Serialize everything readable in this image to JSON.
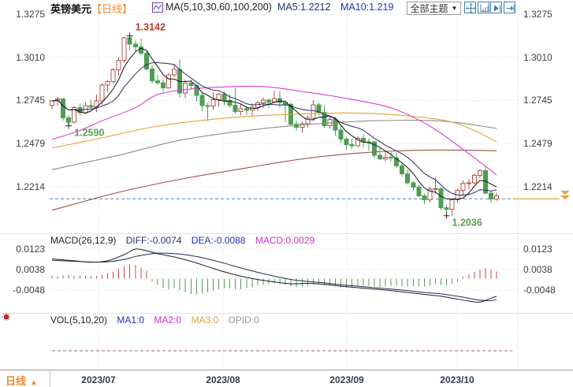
{
  "header": {
    "title": "英镑美元",
    "period_tag": "【日线】",
    "ma_params": "MA(5,10,30,60,100,200)",
    "ma5_label": "MA5:1.2212",
    "ma10_label": "MA10:1.219",
    "theme_label": "全部主题",
    "dropdown_arrow": "▼"
  },
  "macd_header": {
    "title": "MACD(26,12,9)",
    "diff": "DIFF:-0.0074",
    "dea": "DEA:-0.0088",
    "macd": "MACD:0.0029"
  },
  "vol_header": {
    "title": "VOL(5,10,20)",
    "ma1": "MA1:0",
    "ma2": "MA2:0",
    "ma3": "MA3:0",
    "opid": "OPID:0"
  },
  "bottom": {
    "tab_label": "日线",
    "tab_arrow": "▲",
    "dates": [
      "2023/07",
      "2023/08",
      "2023/09",
      "2023/10"
    ]
  },
  "colors": {
    "up": "#b0544e",
    "down": "#4f9d55",
    "ma5": "#111111",
    "ma10": "#2a2a66",
    "ma30": "#d840cc",
    "ma60": "#e2a23c",
    "ma100": "#8b8b8b",
    "ma200": "#9e524a",
    "diff_line": "#1a1a2e",
    "dea_line": "#20304a",
    "hist_pos": "#c05248",
    "hist_neg": "#4f9d55",
    "current_line": "#4e86b0",
    "current_line_right": "#e2a23c",
    "grid": "#ebebeb",
    "separator": "#e3e3e3",
    "axis_line": "#999999",
    "annotation_high": "#b43a2e",
    "annotation_low": "#5c9e51",
    "marker_cross": "#222222",
    "vol_line": "#9a6b66",
    "toolbar_blue": "#3c7fae",
    "tab_orange": "#ef8b32"
  },
  "axis": {
    "main_price_labels": [
      "1.3275",
      "1.3010",
      "1.2745",
      "1.2479",
      "1.2214"
    ],
    "macd_value_labels": [
      "0.0123",
      "0.0038",
      "-0.0048"
    ]
  },
  "chart_data": {
    "type": "candlestick",
    "title": "英镑美元 日线 (GBP/USD Daily)",
    "main": {
      "price_gridlines": [
        1.3275,
        1.301,
        1.2745,
        1.2479,
        1.2214
      ],
      "current_price": 1.214,
      "candles": [
        [
          1.2715,
          1.2748,
          1.269,
          1.2741
        ],
        [
          1.2741,
          1.2768,
          1.2712,
          1.2755
        ],
        [
          1.2755,
          1.2762,
          1.262,
          1.2637
        ],
        [
          1.2637,
          1.2652,
          1.259,
          1.2612
        ],
        [
          1.2612,
          1.2712,
          1.2603,
          1.27
        ],
        [
          1.27,
          1.2726,
          1.2652,
          1.267
        ],
        [
          1.267,
          1.2735,
          1.2662,
          1.2713
        ],
        [
          1.2713,
          1.2749,
          1.2688,
          1.2703
        ],
        [
          1.2703,
          1.2782,
          1.2674,
          1.2742
        ],
        [
          1.2742,
          1.2852,
          1.272,
          1.2838
        ],
        [
          1.2838,
          1.2872,
          1.2798,
          1.286
        ],
        [
          1.286,
          1.2942,
          1.2848,
          1.2934
        ],
        [
          1.2934,
          1.3012,
          1.2898,
          1.2992
        ],
        [
          1.2992,
          1.3138,
          1.2978,
          1.313
        ],
        [
          1.313,
          1.3142,
          1.3058,
          1.3092
        ],
        [
          1.3092,
          1.3112,
          1.3048,
          1.3075
        ],
        [
          1.3075,
          1.3126,
          1.3022,
          1.3036
        ],
        [
          1.3036,
          1.3048,
          1.2928,
          1.2938
        ],
        [
          1.2938,
          1.2962,
          1.2848,
          1.2866
        ],
        [
          1.2866,
          1.2902,
          1.2838,
          1.2854
        ],
        [
          1.2854,
          1.2872,
          1.2798,
          1.2823
        ],
        [
          1.2823,
          1.2912,
          1.2818,
          1.2903
        ],
        [
          1.2903,
          1.2962,
          1.2888,
          1.2936
        ],
        [
          1.2936,
          1.2996,
          1.2762,
          1.279
        ],
        [
          1.279,
          1.2872,
          1.2758,
          1.2851
        ],
        [
          1.2851,
          1.2874,
          1.2812,
          1.2836
        ],
        [
          1.2836,
          1.2842,
          1.2738,
          1.2776
        ],
        [
          1.2776,
          1.2792,
          1.2678,
          1.2712
        ],
        [
          1.2712,
          1.273,
          1.2618,
          1.2711
        ],
        [
          1.2711,
          1.2796,
          1.2688,
          1.2749
        ],
        [
          1.2749,
          1.279,
          1.2708,
          1.2784
        ],
        [
          1.2784,
          1.2802,
          1.2715,
          1.2745
        ],
        [
          1.2745,
          1.2782,
          1.2698,
          1.2716
        ],
        [
          1.2716,
          1.282,
          1.2664,
          1.2676
        ],
        [
          1.2676,
          1.2722,
          1.2652,
          1.2694
        ],
        [
          1.2694,
          1.2707,
          1.2657,
          1.2684
        ],
        [
          1.2684,
          1.2727,
          1.2648,
          1.2703
        ],
        [
          1.2703,
          1.2742,
          1.2678,
          1.2731
        ],
        [
          1.2731,
          1.2762,
          1.2698,
          1.2748
        ],
        [
          1.2748,
          1.2757,
          1.2698,
          1.2735
        ],
        [
          1.2735,
          1.2802,
          1.2728,
          1.2756
        ],
        [
          1.2756,
          1.2802,
          1.2702,
          1.2733
        ],
        [
          1.2733,
          1.2748,
          1.2612,
          1.272
        ],
        [
          1.272,
          1.2732,
          1.2592,
          1.2598
        ],
        [
          1.2598,
          1.2622,
          1.2558,
          1.2579
        ],
        [
          1.2579,
          1.2617,
          1.2548,
          1.2601
        ],
        [
          1.2601,
          1.2652,
          1.2578,
          1.2636
        ],
        [
          1.2636,
          1.2748,
          1.2618,
          1.2718
        ],
        [
          1.2718,
          1.2732,
          1.2652,
          1.2672
        ],
        [
          1.2672,
          1.2712,
          1.2576,
          1.259
        ],
        [
          1.259,
          1.2648,
          1.2572,
          1.2628
        ],
        [
          1.2628,
          1.2642,
          1.2526,
          1.2564
        ],
        [
          1.2564,
          1.2592,
          1.2482,
          1.2506
        ],
        [
          1.2506,
          1.2522,
          1.2442,
          1.2473
        ],
        [
          1.2473,
          1.251,
          1.2446,
          1.2465
        ],
        [
          1.2465,
          1.2527,
          1.2458,
          1.2511
        ],
        [
          1.2511,
          1.2537,
          1.2458,
          1.249
        ],
        [
          1.249,
          1.2512,
          1.2438,
          1.2489
        ],
        [
          1.2489,
          1.2497,
          1.2392,
          1.2409
        ],
        [
          1.2409,
          1.2452,
          1.2378,
          1.2385
        ],
        [
          1.2385,
          1.2424,
          1.2368,
          1.2395
        ],
        [
          1.2395,
          1.2427,
          1.237,
          1.2391
        ],
        [
          1.2391,
          1.2424,
          1.233,
          1.2343
        ],
        [
          1.2343,
          1.2357,
          1.2278,
          1.2294
        ],
        [
          1.2294,
          1.2317,
          1.2228,
          1.2238
        ],
        [
          1.2238,
          1.225,
          1.2192,
          1.2211
        ],
        [
          1.2211,
          1.2227,
          1.2148,
          1.2158
        ],
        [
          1.2158,
          1.2172,
          1.2108,
          1.2135
        ],
        [
          1.2135,
          1.2217,
          1.2116,
          1.2199
        ],
        [
          1.2199,
          1.2272,
          1.2172,
          1.2203
        ],
        [
          1.2203,
          1.2212,
          1.2072,
          1.2085
        ],
        [
          1.2085,
          1.2102,
          1.2036,
          1.2076
        ],
        [
          1.2076,
          1.2142,
          1.2038,
          1.2134
        ],
        [
          1.2134,
          1.2202,
          1.2118,
          1.2193
        ],
        [
          1.2193,
          1.2252,
          1.2158,
          1.2236
        ],
        [
          1.2236,
          1.2262,
          1.2198,
          1.2239
        ],
        [
          1.2239,
          1.2297,
          1.2228,
          1.2285
        ],
        [
          1.2285,
          1.2322,
          1.2268,
          1.2313
        ],
        [
          1.2313,
          1.2337,
          1.2168,
          1.2175
        ],
        [
          1.2175,
          1.2192,
          1.2118,
          1.214
        ],
        [
          1.214,
          1.2177,
          1.2128,
          1.2158
        ]
      ],
      "ma_overlays": [
        {
          "name": "MA30",
          "color_key": "ma30",
          "points": [
            [
              0,
              1.2505
            ],
            [
              5,
              1.256
            ],
            [
              9,
              1.262
            ],
            [
              15,
              1.27
            ],
            [
              19,
              1.2781
            ],
            [
              25,
              1.2815
            ],
            [
              31,
              1.2828
            ],
            [
              38,
              1.283
            ],
            [
              46,
              1.2795
            ],
            [
              53,
              1.2757
            ],
            [
              61,
              1.2699
            ],
            [
              68,
              1.2587
            ],
            [
              75,
              1.2418
            ],
            [
              80,
              1.2287
            ]
          ]
        },
        {
          "name": "MA60",
          "color_key": "ma60",
          "points": [
            [
              0,
              1.2452
            ],
            [
              9,
              1.2515
            ],
            [
              19,
              1.2587
            ],
            [
              31,
              1.2636
            ],
            [
              42,
              1.2658
            ],
            [
              53,
              1.2668
            ],
            [
              62,
              1.2655
            ],
            [
              71,
              1.262
            ],
            [
              76,
              1.256
            ],
            [
              80,
              1.249
            ]
          ]
        },
        {
          "name": "MA100",
          "color_key": "ma100",
          "points": [
            [
              0,
              1.232
            ],
            [
              12,
              1.2408
            ],
            [
              23,
              1.25
            ],
            [
              35,
              1.256
            ],
            [
              46,
              1.2597
            ],
            [
              58,
              1.262
            ],
            [
              70,
              1.2618
            ],
            [
              80,
              1.2573
            ]
          ]
        },
        {
          "name": "MA200",
          "color_key": "ma200",
          "points": [
            [
              0,
              1.207
            ],
            [
              12,
              1.218
            ],
            [
              23,
              1.226
            ],
            [
              35,
              1.233
            ],
            [
              46,
              1.239
            ],
            [
              58,
              1.2428
            ],
            [
              69,
              1.244
            ],
            [
              80,
              1.2436
            ]
          ]
        }
      ],
      "annotations": [
        {
          "index": 14,
          "price": 1.3142,
          "label": "1.3142",
          "type": "high"
        },
        {
          "index": 3,
          "price": 1.259,
          "label": "1.2590",
          "type": "low"
        },
        {
          "index": 71,
          "price": 1.2036,
          "label": "1.2036",
          "type": "low"
        }
      ]
    },
    "macd": {
      "gridlines": [
        0.0123,
        0.0038,
        -0.0048
      ],
      "histogram": [
        0.0012,
        0.001,
        0.0013,
        0.0015,
        0.0012,
        0.0013,
        0.0011,
        0.001,
        0.0012,
        0.0016,
        0.0022,
        0.003,
        0.004,
        0.0052,
        0.006,
        0.0057,
        0.0046,
        0.0032,
        -0.0012,
        -0.0026,
        -0.0038,
        -0.0044,
        -0.004,
        -0.0048,
        -0.0058,
        -0.0064,
        -0.0066,
        -0.0062,
        -0.0058,
        -0.0052,
        -0.0044,
        -0.004,
        -0.0042,
        -0.0046,
        -0.0044,
        -0.004,
        -0.0036,
        -0.003,
        -0.0026,
        -0.0024,
        -0.002,
        -0.0022,
        -0.0026,
        -0.0032,
        -0.0036,
        -0.0034,
        -0.003,
        -0.0024,
        -0.0024,
        -0.0028,
        -0.003,
        -0.0032,
        -0.0036,
        -0.0038,
        -0.0036,
        -0.0032,
        -0.003,
        -0.003,
        -0.0034,
        -0.0036,
        -0.0034,
        -0.003,
        -0.003,
        -0.0032,
        -0.0034,
        -0.0032,
        -0.0032,
        -0.0034,
        -0.003,
        -0.0024,
        -0.0026,
        -0.0028,
        -0.0022,
        -0.0014,
        0.0008,
        0.0018,
        0.0028,
        0.0038,
        0.0044,
        0.0038,
        0.0029
      ],
      "diff_points": [
        [
          0,
          0.0082
        ],
        [
          4,
          0.0074
        ],
        [
          7,
          0.0068
        ],
        [
          10,
          0.0074
        ],
        [
          13,
          0.01
        ],
        [
          15,
          0.0123
        ],
        [
          17,
          0.0116
        ],
        [
          19,
          0.0104
        ],
        [
          22,
          0.009
        ],
        [
          25,
          0.0072
        ],
        [
          28,
          0.005
        ],
        [
          31,
          0.0028
        ],
        [
          34,
          0.001
        ],
        [
          37,
          -0.0004
        ],
        [
          40,
          -0.0014
        ],
        [
          43,
          -0.0022
        ],
        [
          46,
          -0.002
        ],
        [
          49,
          -0.0024
        ],
        [
          52,
          -0.0032
        ],
        [
          55,
          -0.0038
        ],
        [
          58,
          -0.0044
        ],
        [
          61,
          -0.005
        ],
        [
          64,
          -0.0058
        ],
        [
          67,
          -0.0066
        ],
        [
          70,
          -0.0074
        ],
        [
          73,
          -0.0086
        ],
        [
          75,
          -0.0094
        ],
        [
          77,
          -0.0098
        ],
        [
          79,
          -0.0082
        ],
        [
          80,
          -0.0074
        ]
      ],
      "dea_points": [
        [
          0,
          0.0076
        ],
        [
          4,
          0.0072
        ],
        [
          7,
          0.0069
        ],
        [
          10,
          0.007
        ],
        [
          13,
          0.008
        ],
        [
          15,
          0.0092
        ],
        [
          17,
          0.01
        ],
        [
          19,
          0.0106
        ],
        [
          22,
          0.0104
        ],
        [
          25,
          0.0096
        ],
        [
          28,
          0.0082
        ],
        [
          31,
          0.0064
        ],
        [
          34,
          0.0044
        ],
        [
          37,
          0.0026
        ],
        [
          40,
          0.001
        ],
        [
          43,
          -0.0004
        ],
        [
          46,
          -0.0012
        ],
        [
          49,
          -0.0018
        ],
        [
          52,
          -0.0026
        ],
        [
          55,
          -0.0032
        ],
        [
          58,
          -0.0038
        ],
        [
          61,
          -0.0044
        ],
        [
          64,
          -0.005
        ],
        [
          67,
          -0.0058
        ],
        [
          70,
          -0.0064
        ],
        [
          73,
          -0.0074
        ],
        [
          75,
          -0.0082
        ],
        [
          77,
          -0.009
        ],
        [
          79,
          -0.0092
        ],
        [
          80,
          -0.0088
        ]
      ]
    },
    "vol": {
      "flat_value": 0
    }
  }
}
